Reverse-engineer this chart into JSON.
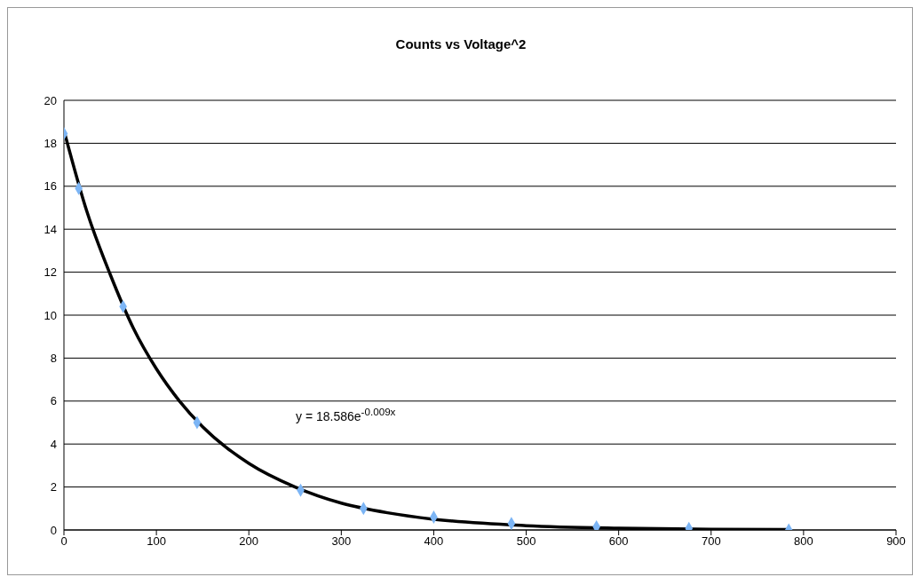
{
  "chart_data": {
    "type": "scatter",
    "title": "Counts vs Voltage^2",
    "series": [
      {
        "color": "#7cb5f5",
        "marker": "diamond",
        "x": [
          0,
          16,
          64,
          144,
          256,
          324,
          400,
          484,
          576,
          676,
          784
        ],
        "values": [
          18.45,
          15.9,
          10.4,
          5.0,
          1.85,
          1.0,
          0.6,
          0.3,
          0.15,
          0.07,
          0.0
        ]
      },
      {
        "type": "line",
        "color": "#000000",
        "marker": "none",
        "x": [
          0,
          25,
          50,
          75,
          100,
          125,
          150,
          200,
          250,
          300,
          350,
          400,
          500,
          600,
          700,
          784
        ],
        "values": [
          18.6,
          14.8,
          11.9,
          9.4,
          7.5,
          6.0,
          4.8,
          3.1,
          2.0,
          1.25,
          0.8,
          0.5,
          0.2,
          0.08,
          0.03,
          0.02
        ]
      }
    ],
    "xlim": [
      0,
      900
    ],
    "xticks": [
      0,
      100,
      200,
      300,
      400,
      500,
      600,
      700,
      800,
      900
    ],
    "ylim": [
      0,
      20
    ],
    "yticks": [
      0,
      2,
      4,
      6,
      8,
      10,
      12,
      14,
      16,
      18,
      20
    ],
    "grid": "y",
    "annotations": [
      "y = 18.586e$^{-0.009x}$"
    ]
  }
}
